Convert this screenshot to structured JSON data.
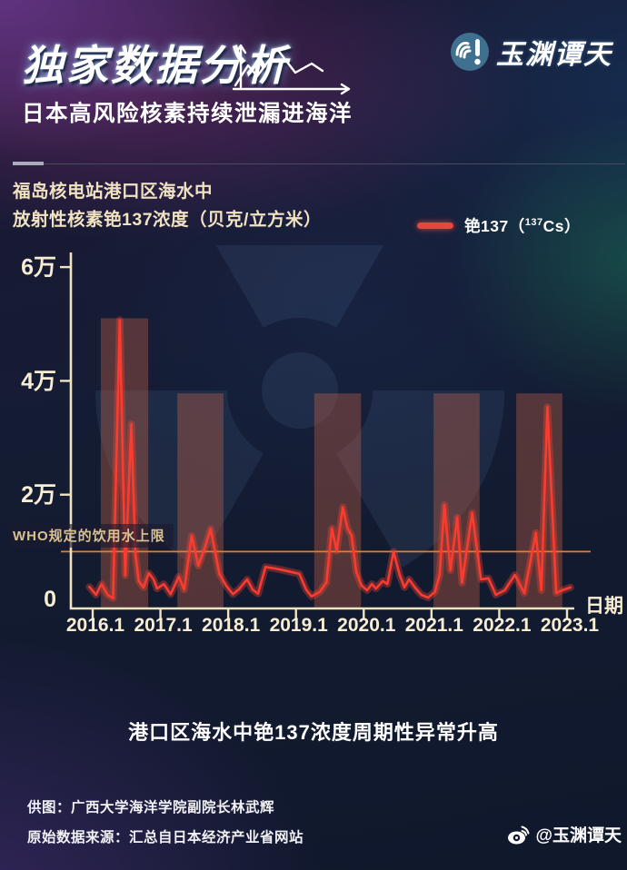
{
  "header": {
    "title": "独家数据分析",
    "subtitle": "日本高风险核素持续泄漏进海洋",
    "brand": "玉渊谭天"
  },
  "chart": {
    "description_line1": "福岛核电站港口区海水中",
    "description_line2": "放射性核素铯137浓度（贝克/立方米）",
    "legend": {
      "label": "铯137",
      "paren_open": "（",
      "isotope_mass": "137",
      "isotope_symbol": "Cs",
      "paren_close": "）"
    }
  },
  "chart_data": {
    "type": "line",
    "title": "福岛核电站港口区海水中放射性核素铯137浓度（贝克/立方米）",
    "xlabel": "日期",
    "ylim": [
      0,
      62000
    ],
    "x_ticks": [
      "2016.1",
      "2017.1",
      "2018.1",
      "2019.1",
      "2020.1",
      "2021.1",
      "2022.1",
      "2023.1"
    ],
    "y_ticks": [
      {
        "label": "6万",
        "value": 60000
      },
      {
        "label": "4万",
        "value": 40000
      },
      {
        "label": "2万",
        "value": 20000
      },
      {
        "label": "0",
        "value": 0
      }
    ],
    "axis_color": "#eee3c2",
    "tick_label_color": "#f6edd2",
    "band_color": "rgba(225,110,70,0.32)",
    "reference_line": {
      "label": "WHO规定的饮用水上限",
      "value": 10000,
      "color": "#ee7c1f"
    },
    "highlight_bands": [
      {
        "x0": 0.12,
        "x1": 0.82,
        "top": 51000
      },
      {
        "x0": 1.25,
        "x1": 1.93,
        "top": 37800
      },
      {
        "x0": 3.27,
        "x1": 3.96,
        "top": 37800
      },
      {
        "x0": 5.03,
        "x1": 5.71,
        "top": 37800
      },
      {
        "x0": 6.25,
        "x1": 6.93,
        "top": 37800
      }
    ],
    "series": [
      {
        "name": "铯137 (137Cs)",
        "color": "#fa3c30",
        "glow_color": "rgba(255,70,50,0.33)",
        "points": [
          [
            -0.05,
            3800
          ],
          [
            0.05,
            2400
          ],
          [
            0.13,
            4300
          ],
          [
            0.22,
            2400
          ],
          [
            0.3,
            1800
          ],
          [
            0.4,
            50700
          ],
          [
            0.48,
            5800
          ],
          [
            0.57,
            32400
          ],
          [
            0.63,
            9500
          ],
          [
            0.68,
            4800
          ],
          [
            0.75,
            3700
          ],
          [
            0.83,
            6200
          ],
          [
            0.9,
            5100
          ],
          [
            0.95,
            3500
          ],
          [
            1.05,
            4300
          ],
          [
            1.15,
            2500
          ],
          [
            1.27,
            5600
          ],
          [
            1.35,
            3300
          ],
          [
            1.46,
            12800
          ],
          [
            1.56,
            7500
          ],
          [
            1.65,
            10500
          ],
          [
            1.74,
            14000
          ],
          [
            1.87,
            6100
          ],
          [
            1.97,
            4000
          ],
          [
            2.07,
            2500
          ],
          [
            2.16,
            3400
          ],
          [
            2.28,
            5100
          ],
          [
            2.36,
            3300
          ],
          [
            2.44,
            2600
          ],
          [
            2.55,
            7300
          ],
          [
            2.7,
            7000
          ],
          [
            2.9,
            6500
          ],
          [
            3.05,
            6100
          ],
          [
            3.15,
            3300
          ],
          [
            3.23,
            2100
          ],
          [
            3.35,
            2900
          ],
          [
            3.45,
            4600
          ],
          [
            3.53,
            14100
          ],
          [
            3.6,
            10100
          ],
          [
            3.69,
            17800
          ],
          [
            3.76,
            14100
          ],
          [
            3.82,
            12800
          ],
          [
            3.89,
            6400
          ],
          [
            3.97,
            4000
          ],
          [
            4.05,
            3200
          ],
          [
            4.12,
            4300
          ],
          [
            4.18,
            3500
          ],
          [
            4.28,
            4800
          ],
          [
            4.35,
            4300
          ],
          [
            4.44,
            10000
          ],
          [
            4.53,
            5900
          ],
          [
            4.6,
            3700
          ],
          [
            4.67,
            5100
          ],
          [
            4.77,
            3500
          ],
          [
            4.85,
            2400
          ],
          [
            4.95,
            1900
          ],
          [
            5.05,
            2900
          ],
          [
            5.12,
            5900
          ],
          [
            5.19,
            18200
          ],
          [
            5.28,
            6700
          ],
          [
            5.38,
            16000
          ],
          [
            5.45,
            4500
          ],
          [
            5.6,
            16800
          ],
          [
            5.73,
            5100
          ],
          [
            5.84,
            5300
          ],
          [
            5.95,
            2400
          ],
          [
            6.08,
            3200
          ],
          [
            6.23,
            5900
          ],
          [
            6.37,
            2700
          ],
          [
            6.54,
            13300
          ],
          [
            6.62,
            3200
          ],
          [
            6.71,
            35400
          ],
          [
            6.84,
            2700
          ],
          [
            6.93,
            3200
          ],
          [
            7.05,
            3700
          ]
        ]
      }
    ]
  },
  "footer": {
    "caption": "港口区海水中铯137浓度周期性异常升高",
    "credit_line1": "供图：广西大学海洋学院副院长林武辉",
    "credit_line2": "原始数据来源：汇总自日本经济产业省网站",
    "weibo_handle": "@玉渊谭天"
  }
}
